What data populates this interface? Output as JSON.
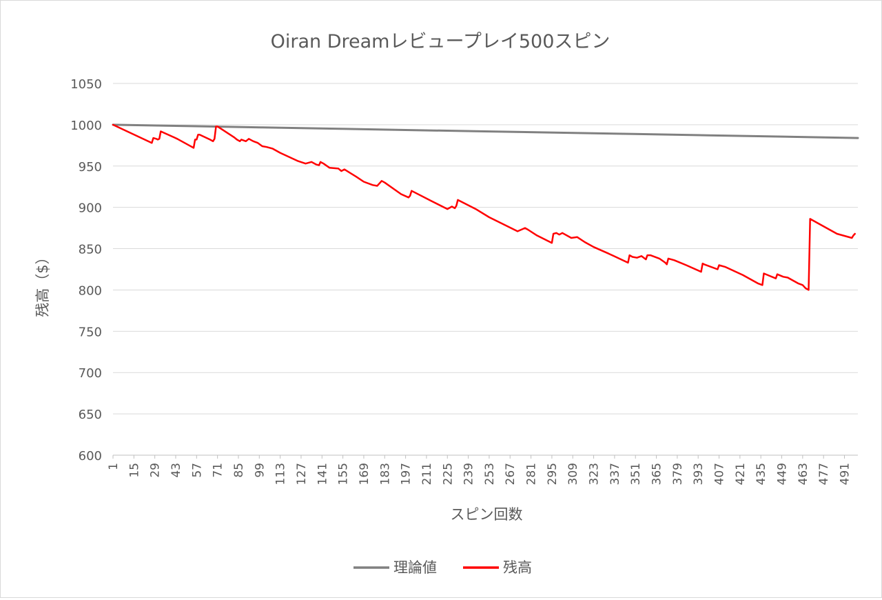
{
  "chart_data": {
    "type": "line",
    "title": "Oiran Dreamレビュープレイ500スピン",
    "xlabel": "スピン回数",
    "ylabel": "残高（$）",
    "ylim": [
      600,
      1050
    ],
    "yticks": [
      600,
      650,
      700,
      750,
      800,
      850,
      900,
      950,
      1000,
      1050
    ],
    "xlim": [
      1,
      500
    ],
    "xticks": [
      1,
      15,
      29,
      43,
      57,
      71,
      85,
      99,
      113,
      127,
      141,
      155,
      169,
      183,
      197,
      211,
      225,
      239,
      253,
      267,
      281,
      295,
      309,
      323,
      337,
      351,
      365,
      379,
      393,
      407,
      421,
      435,
      449,
      463,
      477,
      491
    ],
    "grid": true,
    "legend_position": "bottom",
    "series": [
      {
        "name": "理論値",
        "color": "#808080",
        "x": [
          1,
          50,
          100,
          150,
          200,
          250,
          300,
          350,
          400,
          450,
          500
        ],
        "values": [
          1000,
          998.4,
          996.8,
          995.2,
          993.6,
          992.0,
          990.4,
          988.8,
          987.2,
          985.6,
          984.0
        ]
      },
      {
        "name": "残高",
        "color": "#ff0000",
        "x": [
          1,
          27,
          28,
          30,
          31,
          32,
          33,
          44,
          52,
          55,
          56,
          57,
          58,
          59,
          66,
          68,
          69,
          70,
          71,
          82,
          84,
          86,
          87,
          90,
          92,
          95,
          98,
          101,
          104,
          108,
          113,
          119,
          125,
          130,
          134,
          137,
          139,
          140,
          142,
          146,
          152,
          154,
          156,
          164,
          169,
          175,
          178,
          180,
          181,
          183,
          194,
          199,
          200,
          201,
          214,
          225,
          228,
          230,
          231,
          232,
          244,
          253,
          262,
          272,
          277,
          279,
          285,
          295,
          296,
          298,
          300,
          302,
          308,
          312,
          317,
          323,
          333,
          346,
          347,
          349,
          352,
          355,
          358,
          359,
          361,
          367,
          371,
          372,
          373,
          377,
          385,
          395,
          396,
          397,
          406,
          407,
          411,
          423,
          433,
          436,
          437,
          441,
          445,
          446,
          450,
          453,
          460,
          463,
          464,
          465,
          466,
          467,
          468,
          476,
          486,
          496,
          497,
          498
        ],
        "values": [
          1000,
          978,
          984,
          983,
          982,
          983,
          992,
          983,
          975,
          972,
          982,
          982,
          988,
          988,
          982,
          980,
          983,
          998,
          998,
          985,
          982,
          980,
          982,
          980,
          983,
          980,
          978,
          974,
          973,
          971,
          966,
          961,
          956,
          953,
          955,
          952,
          951,
          955,
          953,
          948,
          947,
          944,
          946,
          937,
          931,
          927,
          926,
          930,
          932,
          930,
          916,
          912,
          914,
          920,
          908,
          898,
          901,
          899,
          902,
          909,
          898,
          888,
          880,
          871,
          875,
          873,
          866,
          857,
          868,
          869,
          867,
          869,
          863,
          864,
          858,
          852,
          844,
          833,
          842,
          840,
          839,
          841,
          837,
          842,
          842,
          838,
          833,
          831,
          838,
          836,
          830,
          822,
          832,
          831,
          825,
          830,
          828,
          818,
          808,
          806,
          820,
          817,
          814,
          819,
          816,
          815,
          808,
          806,
          804,
          802,
          801,
          800,
          886,
          878,
          868,
          863,
          866,
          868
        ]
      }
    ]
  }
}
